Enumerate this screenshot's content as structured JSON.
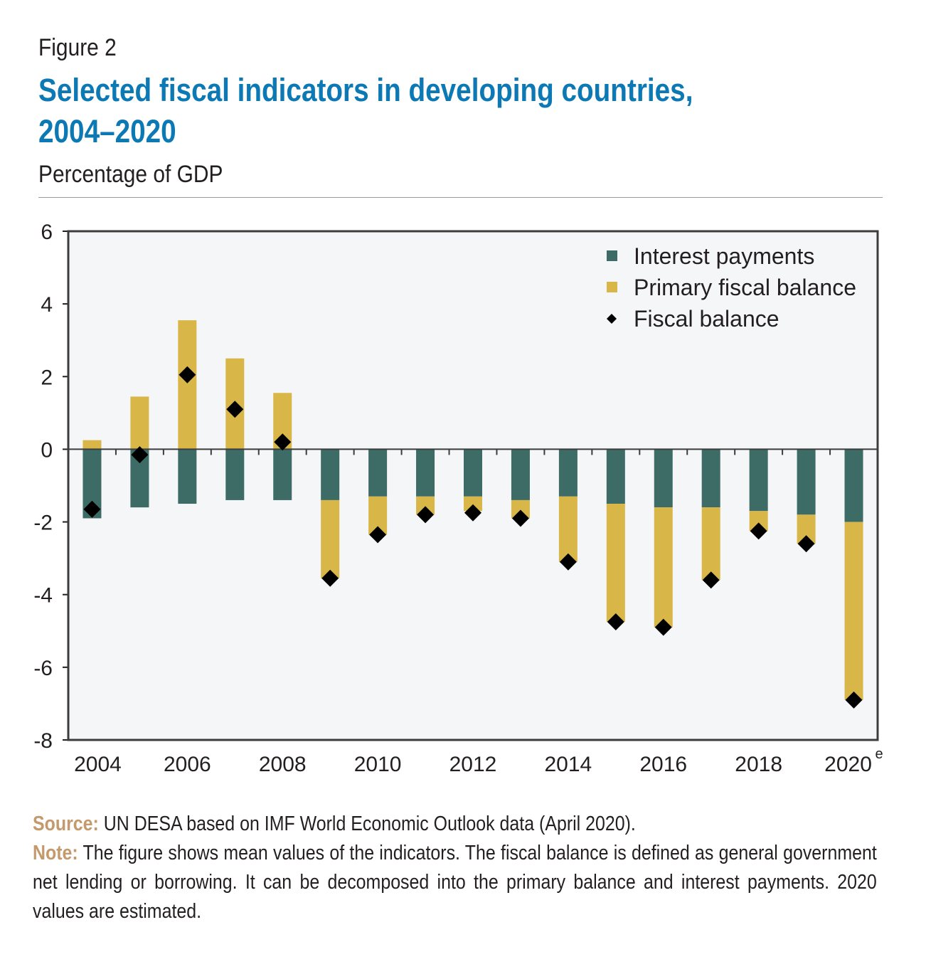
{
  "figure_label": "Figure 2",
  "title_line1": "Selected fiscal indicators in developing countries,",
  "title_line2": "2004–2020",
  "subtitle": "Percentage of GDP",
  "colors": {
    "interest": "#3d6b66",
    "primary": "#d9b648",
    "fiscal": "#000000",
    "title": "#0c79b5",
    "note_heading": "#c49a6c",
    "plot_bg": "#f5f6f8"
  },
  "chart_data": {
    "type": "bar",
    "stacked": true,
    "categories": [
      "2004",
      "2005",
      "2006",
      "2007",
      "2008",
      "2009",
      "2010",
      "2011",
      "2012",
      "2013",
      "2014",
      "2015",
      "2016",
      "2017",
      "2018",
      "2019",
      "2020"
    ],
    "x_tick_labels": [
      "2004",
      "2006",
      "2008",
      "2010",
      "2012",
      "2014",
      "2016",
      "2018",
      "2020"
    ],
    "x_tick_superscript_last": "e",
    "series": [
      {
        "name": "Interest payments",
        "kind": "bar",
        "values": [
          -1.9,
          -1.6,
          -1.5,
          -1.4,
          -1.4,
          -1.4,
          -1.3,
          -1.3,
          -1.3,
          -1.4,
          -1.3,
          -1.5,
          -1.6,
          -1.6,
          -1.7,
          -1.8,
          -2.0
        ]
      },
      {
        "name": "Primary fiscal balance",
        "kind": "bar",
        "values": [
          0.25,
          1.45,
          3.55,
          2.5,
          1.55,
          -2.15,
          -1.05,
          -0.5,
          -0.4,
          -0.5,
          -1.8,
          -3.25,
          -3.3,
          -2.0,
          -0.55,
          -0.8,
          -4.9
        ]
      },
      {
        "name": "Fiscal balance",
        "kind": "marker",
        "values": [
          -1.65,
          -0.15,
          2.05,
          1.1,
          0.2,
          -3.55,
          -2.35,
          -1.8,
          -1.75,
          -1.9,
          -3.1,
          -4.75,
          -4.9,
          -3.6,
          -2.25,
          -2.6,
          -6.9
        ]
      }
    ],
    "y_ticks": [
      "6",
      "4",
      "2",
      "0",
      "-2",
      "-4",
      "-6",
      "-8"
    ],
    "ylim": [
      -8,
      6
    ],
    "legend_position": "top-right",
    "grid": false
  },
  "source_heading": "Source:",
  "source_text": " UN DESA based on IMF World Economic Outlook data (April 2020).",
  "note_heading": "Note:",
  "note_text": " The figure shows mean values of the indicators. The fiscal balance is defined as general government net lending or borrowing. It can be decomposed into the primary balance and interest payments. 2020 values are estimated."
}
